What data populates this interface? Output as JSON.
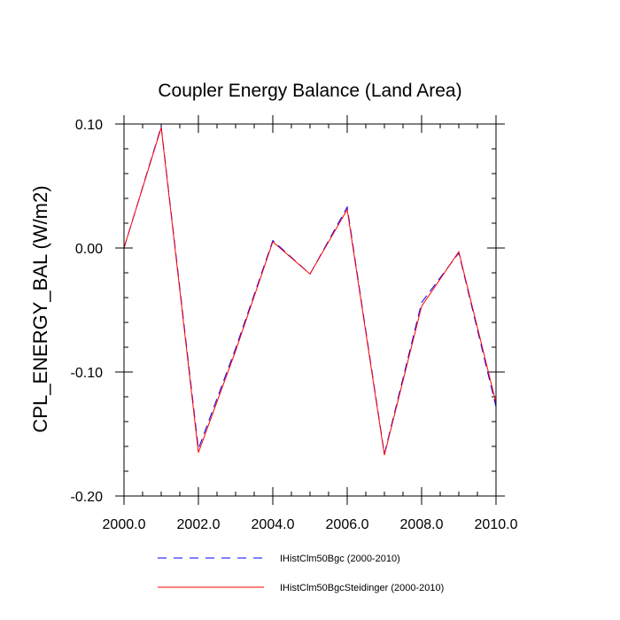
{
  "chart_data": {
    "type": "line",
    "title": "Coupler Energy Balance (Land Area)",
    "xlabel": "",
    "ylabel": "CPL_ENERGY_BAL  (W/m2)",
    "xlim": [
      2000,
      2010
    ],
    "ylim": [
      -0.2,
      0.1
    ],
    "x_ticks": [
      {
        "value": 2000,
        "label": "2000.0"
      },
      {
        "value": 2002,
        "label": "2002.0"
      },
      {
        "value": 2004,
        "label": "2004.0"
      },
      {
        "value": 2006,
        "label": "2006.0"
      },
      {
        "value": 2008,
        "label": "2008.0"
      },
      {
        "value": 2010,
        "label": "2010.0"
      }
    ],
    "y_ticks": [
      {
        "value": 0.1,
        "label": "0.10"
      },
      {
        "value": 0.0,
        "label": "0.00"
      },
      {
        "value": -0.1,
        "label": "-0.10"
      },
      {
        "value": -0.2,
        "label": "-0.20"
      }
    ],
    "x_minor_step": 0.5,
    "y_minor_step": 0.02,
    "grid": false,
    "legend_position": "bottom-center",
    "series": [
      {
        "name": "IHistClm50Bgc (2000-2010)",
        "color": "#0000ff",
        "dash": "dashed",
        "x": [
          2000,
          2001,
          2002,
          2003,
          2004,
          2005,
          2006,
          2007,
          2008,
          2009,
          2010
        ],
        "y": [
          0.0,
          0.098,
          -0.162,
          -0.081,
          0.006,
          -0.021,
          0.033,
          -0.166,
          -0.044,
          -0.004,
          -0.128
        ]
      },
      {
        "name": "IHistClm50BgcSteidinger (2000-2010)",
        "color": "#ff0000",
        "dash": "solid",
        "x": [
          2000,
          2001,
          2002,
          2003,
          2004,
          2005,
          2006,
          2007,
          2008,
          2009,
          2010
        ],
        "y": [
          0.0,
          0.097,
          -0.165,
          -0.083,
          0.005,
          -0.021,
          0.031,
          -0.167,
          -0.047,
          -0.003,
          -0.125
        ]
      }
    ]
  }
}
